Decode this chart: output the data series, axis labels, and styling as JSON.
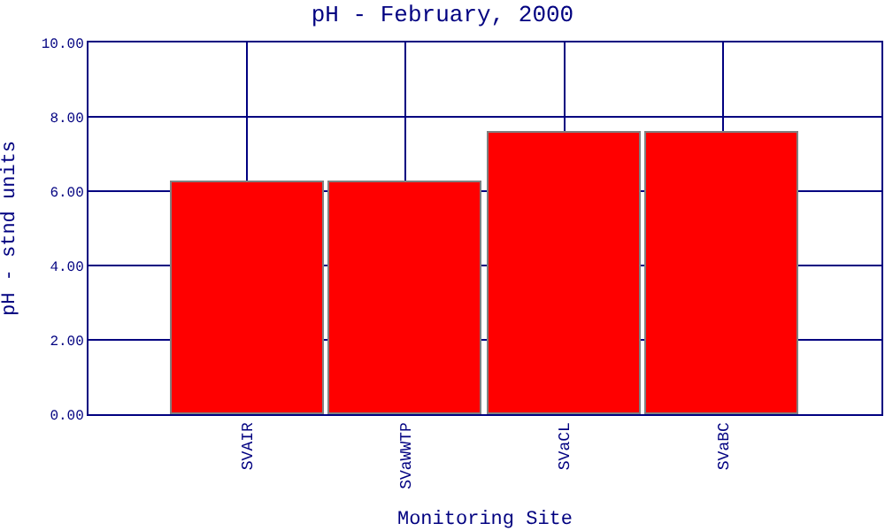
{
  "chart_data": {
    "type": "bar",
    "title": "pH - February, 2000",
    "xlabel": "Monitoring Site",
    "ylabel": "pH - stnd units",
    "categories": [
      "SVAIR",
      "SVaWWTP",
      "SVaCL",
      "SVaBC"
    ],
    "values": [
      6.25,
      6.25,
      7.55,
      7.55
    ],
    "color": "#ff0000",
    "ylim": [
      0,
      10
    ],
    "yticks": [
      {
        "value": 0,
        "label": "0.00"
      },
      {
        "value": 2,
        "label": "2.00"
      },
      {
        "value": 4,
        "label": "4.00"
      },
      {
        "value": 6,
        "label": "6.00"
      },
      {
        "value": 8,
        "label": "8.00"
      },
      {
        "value": 10,
        "label": "10.00"
      }
    ],
    "grid": true,
    "legend": false
  }
}
